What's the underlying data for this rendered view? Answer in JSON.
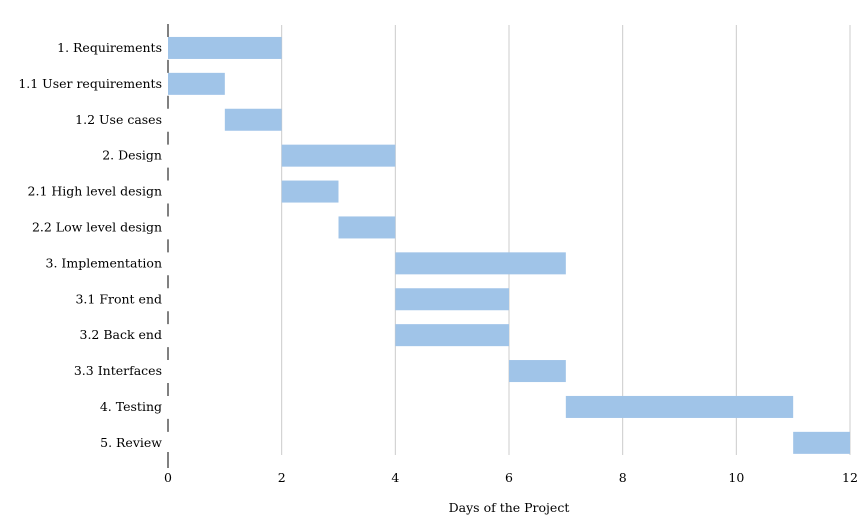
{
  "chart_data": {
    "type": "bar",
    "orientation": "horizontal",
    "subtype": "gantt",
    "xlabel": "Days of the Project",
    "xlim": [
      0,
      12
    ],
    "xticks": [
      0,
      2,
      4,
      6,
      8,
      10,
      12
    ],
    "grid": "vertical",
    "bar_color": "#a0c4e8",
    "tasks": [
      {
        "label": "1. Requirements",
        "start": 0,
        "end": 2
      },
      {
        "label": "1.1 User requirements",
        "start": 0,
        "end": 1
      },
      {
        "label": "1.2 Use cases",
        "start": 1,
        "end": 2
      },
      {
        "label": "2. Design",
        "start": 2,
        "end": 4
      },
      {
        "label": "2.1 High level design",
        "start": 2,
        "end": 3
      },
      {
        "label": "2.2 Low level design",
        "start": 3,
        "end": 4
      },
      {
        "label": "3. Implementation",
        "start": 4,
        "end": 7
      },
      {
        "label": "3.1 Front end",
        "start": 4,
        "end": 6
      },
      {
        "label": "3.2 Back end",
        "start": 4,
        "end": 6
      },
      {
        "label": "3.3 Interfaces",
        "start": 6,
        "end": 7
      },
      {
        "label": "4. Testing",
        "start": 7,
        "end": 11
      },
      {
        "label": "5. Review",
        "start": 11,
        "end": 12
      }
    ]
  }
}
